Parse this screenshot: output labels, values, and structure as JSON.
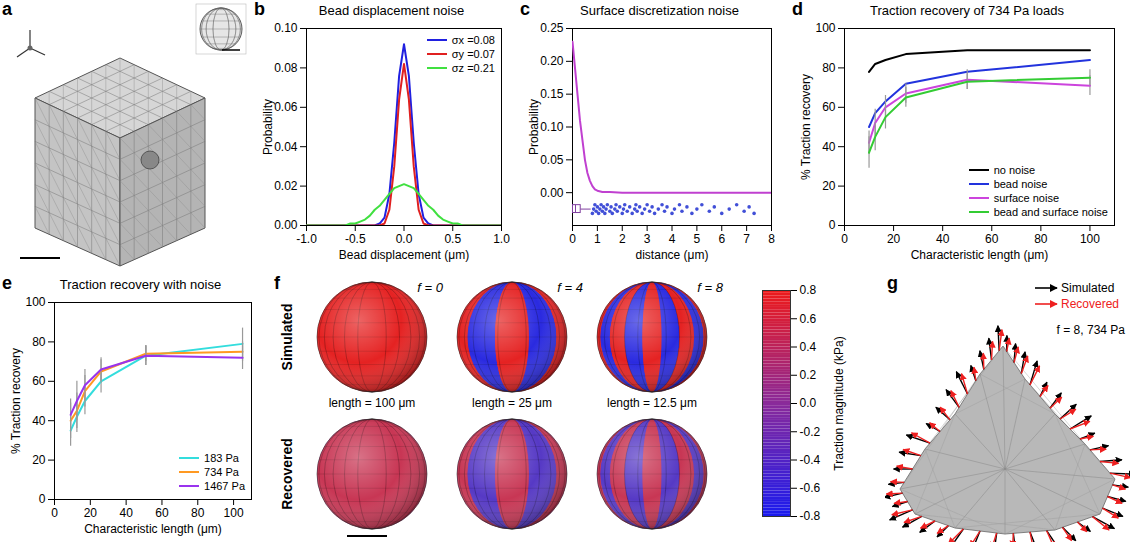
{
  "chart_data": [
    {
      "panel": "b",
      "type": "line",
      "title": "Bead displacement noise",
      "x_label": "Bead displacement (μm)",
      "y_label": "Probability",
      "x": [
        -1,
        -0.95,
        -0.9,
        -0.85,
        -0.8,
        -0.75,
        -0.7,
        -0.65,
        -0.6,
        -0.55,
        -0.5,
        -0.45,
        -0.4,
        -0.35,
        -0.3,
        -0.25,
        -0.2,
        -0.15,
        -0.1,
        -0.05,
        0,
        0.05,
        0.1,
        0.15,
        0.2,
        0.25,
        0.3,
        0.35,
        0.4,
        0.45,
        0.5,
        0.55,
        0.6,
        0.65,
        0.7,
        0.75,
        0.8,
        0.85,
        0.9,
        0.95,
        1
      ],
      "series": [
        {
          "name": "σx =0.08",
          "color": "#2020e0",
          "values": [
            0,
            0,
            0,
            0,
            0,
            0,
            0,
            0,
            0,
            0,
            0,
            0,
            0,
            0,
            0,
            0.001,
            0.004,
            0.016,
            0.042,
            0.076,
            0.092,
            0.076,
            0.042,
            0.016,
            0.004,
            0.001,
            0,
            0,
            0,
            0,
            0,
            0,
            0,
            0,
            0,
            0,
            0,
            0,
            0,
            0,
            0
          ]
        },
        {
          "name": "σy =0.07",
          "color": "#e02020",
          "values": [
            0,
            0,
            0,
            0,
            0,
            0,
            0,
            0,
            0,
            0,
            0,
            0,
            0,
            0,
            0,
            0,
            0.001,
            0.008,
            0.03,
            0.064,
            0.082,
            0.064,
            0.03,
            0.008,
            0.001,
            0,
            0,
            0,
            0,
            0,
            0,
            0,
            0,
            0,
            0,
            0,
            0,
            0,
            0,
            0,
            0
          ]
        },
        {
          "name": "σz =0.21",
          "color": "#40e040",
          "values": [
            0,
            0,
            0,
            0,
            0,
            0,
            0,
            0,
            0,
            0.001,
            0.001,
            0.002,
            0.003,
            0.005,
            0.008,
            0.01,
            0.013,
            0.016,
            0.019,
            0.02,
            0.021,
            0.02,
            0.019,
            0.016,
            0.013,
            0.01,
            0.008,
            0.005,
            0.003,
            0.002,
            0.001,
            0.001,
            0,
            0,
            0,
            0,
            0,
            0,
            0,
            0,
            0
          ]
        }
      ],
      "xlim": [
        -1,
        1
      ],
      "xticks": [
        {
          "value": -1,
          "label": "-1.0"
        },
        {
          "value": -0.5,
          "label": "-0.5"
        },
        {
          "value": 0,
          "label": "0.0"
        },
        {
          "value": 0.5,
          "label": "0.5"
        },
        {
          "value": 1,
          "label": "1.0"
        }
      ],
      "ylim": [
        0,
        0.1
      ],
      "yticks": [
        {
          "value": 0,
          "label": "0.00"
        },
        {
          "value": 0.02,
          "label": "0.02"
        },
        {
          "value": 0.04,
          "label": "0.04"
        },
        {
          "value": 0.06,
          "label": "0.06"
        },
        {
          "value": 0.08,
          "label": "0.08"
        },
        {
          "value": 0.1,
          "label": "0.10"
        }
      ],
      "legend": "upper right"
    },
    {
      "panel": "c",
      "type": "line",
      "title": "Surface discretization noise",
      "x_label": "distance (μm)",
      "y_label": "Probability",
      "x": [
        0,
        0.1,
        0.2,
        0.3,
        0.4,
        0.5,
        0.6,
        0.7,
        0.8,
        0.9,
        1,
        1.2,
        1.5,
        2,
        3,
        4,
        5,
        6,
        7,
        8
      ],
      "series": [
        {
          "color": "#c040d0",
          "values": [
            0.23,
            0.19,
            0.15,
            0.11,
            0.08,
            0.05,
            0.03,
            0.018,
            0.01,
            0.005,
            0.003,
            0.001,
            0.001,
            0,
            0,
            0,
            0,
            0,
            0,
            0
          ]
        }
      ],
      "box": {
        "q1": 0.02,
        "median": 0.12,
        "q3": 0.33,
        "whisker_low": 0,
        "whisker_high": 0.75,
        "color": "#8040a0"
      },
      "points": {
        "color": "#2030d0",
        "values": [
          0.8,
          0.85,
          0.9,
          0.95,
          1.0,
          1.05,
          1.1,
          1.15,
          1.2,
          1.25,
          1.3,
          1.35,
          1.4,
          1.5,
          1.55,
          1.6,
          1.7,
          1.75,
          1.8,
          1.9,
          2.0,
          2.05,
          2.1,
          2.2,
          2.3,
          2.4,
          2.5,
          2.55,
          2.6,
          2.7,
          2.8,
          2.9,
          3.0,
          3.1,
          3.2,
          3.3,
          3.45,
          3.6,
          3.7,
          3.8,
          4.0,
          4.1,
          4.3,
          4.4,
          4.6,
          4.8,
          5.0,
          5.2,
          5.5,
          5.7,
          6.0,
          6.3,
          6.6,
          6.9,
          7.1,
          7.3
        ]
      },
      "xlim": [
        0,
        8
      ],
      "xticks": [
        0,
        1,
        2,
        3,
        4,
        5,
        6,
        7,
        8
      ],
      "ylim": [
        -0.05,
        0.25
      ],
      "yticks": [
        {
          "value": 0,
          "label": "0.00"
        },
        0.05,
        {
          "value": 0.1,
          "label": "0.10"
        },
        0.15,
        {
          "value": 0.2,
          "label": "0.20"
        },
        0.25
      ]
    },
    {
      "panel": "d",
      "type": "line",
      "title": "Traction recovery of 734 Pa loads",
      "x_label": "Characteristic length (μm)",
      "y_label": "% Traction recovery",
      "x": [
        10,
        12.5,
        16.7,
        25,
        50,
        100
      ],
      "series": [
        {
          "name": "no noise",
          "color": "#000000",
          "values": [
            78,
            82,
            84,
            87,
            89,
            89
          ]
        },
        {
          "name": "bead noise",
          "color": "#2233dd",
          "values": [
            50,
            57,
            63,
            72,
            78,
            84
          ]
        },
        {
          "name": "surface noise",
          "color": "#cc44dd",
          "values": [
            42,
            52,
            60,
            67,
            74,
            71
          ],
          "errors": [
            6,
            7,
            6,
            5,
            5,
            5
          ]
        },
        {
          "name": "bead and surface noise",
          "color": "#33cc33",
          "values": [
            37,
            45,
            55,
            65,
            73,
            75
          ],
          "errors": [
            8,
            7,
            6,
            5,
            4,
            4
          ]
        }
      ],
      "xlim": [
        0,
        110
      ],
      "xticks": [
        0,
        20,
        40,
        60,
        80,
        100
      ],
      "ylim": [
        0,
        100
      ],
      "yticks": [
        0,
        20,
        40,
        60,
        80,
        100
      ],
      "legend": "lower right"
    },
    {
      "panel": "e",
      "type": "line",
      "title": "Traction recovery with noise",
      "x_label": "Characteristic length (μm)",
      "y_label": "% Traction recovery",
      "x": [
        9,
        12.5,
        17,
        26,
        51,
        105
      ],
      "series": [
        {
          "name": "183 Pa",
          "color": "#33dddd",
          "values": [
            35,
            42,
            50,
            60,
            73,
            79
          ],
          "errors": [
            8,
            8,
            7,
            6,
            5,
            8
          ]
        },
        {
          "name": "734 Pa",
          "color": "#ff9922",
          "values": [
            40,
            45,
            55,
            65,
            74,
            75
          ],
          "errors": [
            9,
            9,
            8,
            6,
            4,
            5
          ]
        },
        {
          "name": "1467 Pa",
          "color": "#9933ee",
          "values": [
            43,
            50,
            58,
            66,
            73,
            72
          ],
          "errors": [
            8,
            10,
            8,
            6,
            5,
            6
          ]
        }
      ],
      "xlim": [
        0,
        110
      ],
      "xticks": [
        0,
        20,
        40,
        60,
        80,
        100
      ],
      "ylim": [
        0,
        100
      ],
      "yticks": [
        0,
        20,
        40,
        60,
        80,
        100
      ],
      "legend": "lower right"
    }
  ],
  "panels": [
    {
      "panel": "a"
    },
    {
      "panel": "f",
      "rows": [
        "Simulated",
        "Recovered"
      ],
      "columns": [
        {
          "f": 0,
          "label": "f = 0",
          "length": "length = 100 μm"
        },
        {
          "f": 4,
          "label": "f = 4",
          "length": "length = 25 μm"
        },
        {
          "f": 8,
          "label": "f = 8",
          "length": "length = 12.5 μm"
        }
      ],
      "colorbar": {
        "label": "Traction magnitude (kPa)",
        "range": [
          -0.8,
          0.8
        ],
        "ticks": [
          0.8,
          0.6,
          0.4,
          0.2,
          {
            "value": 0,
            "label": "0.0"
          },
          -0.2,
          -0.4,
          -0.6,
          -0.8
        ]
      }
    },
    {
      "panel": "g",
      "legend": [
        {
          "name": "Simulated",
          "color": "#000000"
        },
        {
          "name": "Recovered",
          "color": "#ee2020"
        }
      ],
      "annotation": "f = 8, 734 Pa"
    }
  ]
}
